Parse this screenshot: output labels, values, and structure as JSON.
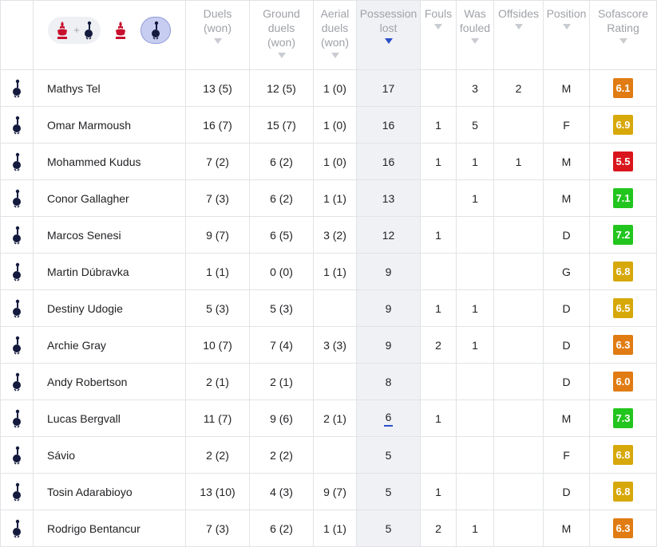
{
  "filters": {
    "combined_plus": "+",
    "icons": [
      "liverpool-crest",
      "tottenham-crest"
    ],
    "selected": "tottenham"
  },
  "columns": [
    {
      "key": "duels",
      "label": "Duels\n(won)"
    },
    {
      "key": "ground",
      "label": "Ground\nduels\n(won)"
    },
    {
      "key": "aerial",
      "label": "Aerial\nduels\n(won)"
    },
    {
      "key": "possession",
      "label": "Possession\nlost",
      "sorted": true
    },
    {
      "key": "fouls",
      "label": "Fouls"
    },
    {
      "key": "fouled",
      "label": "Was\nfouled"
    },
    {
      "key": "offsides",
      "label": "Offsides"
    },
    {
      "key": "position",
      "label": "Position"
    },
    {
      "key": "rating",
      "label": "Sofascore\nRating"
    }
  ],
  "colors": {
    "accent": "#2b50c8",
    "rating_orange": "#e07c13",
    "rating_yellow": "#d7a80a",
    "rating_red": "#d9161c",
    "rating_green": "#22c51e"
  },
  "players": [
    {
      "name": "Mathys Tel",
      "duels": "13 (5)",
      "ground": "12 (5)",
      "aerial": "1 (0)",
      "possession": "17",
      "fouls": "",
      "fouled": "3",
      "offsides": "2",
      "position": "M",
      "rating": "6.1",
      "rating_color": "#e07c13"
    },
    {
      "name": "Omar Marmoush",
      "duels": "16 (7)",
      "ground": "15 (7)",
      "aerial": "1 (0)",
      "possession": "16",
      "fouls": "1",
      "fouled": "5",
      "offsides": "",
      "position": "F",
      "rating": "6.9",
      "rating_color": "#d7a80a"
    },
    {
      "name": "Mohammed Kudus",
      "duels": "7 (2)",
      "ground": "6 (2)",
      "aerial": "1 (0)",
      "possession": "16",
      "fouls": "1",
      "fouled": "1",
      "offsides": "1",
      "position": "M",
      "rating": "5.5",
      "rating_color": "#d9161c"
    },
    {
      "name": "Conor Gallagher",
      "duels": "7 (3)",
      "ground": "6 (2)",
      "aerial": "1 (1)",
      "possession": "13",
      "fouls": "",
      "fouled": "1",
      "offsides": "",
      "position": "M",
      "rating": "7.1",
      "rating_color": "#22c51e"
    },
    {
      "name": "Marcos Senesi",
      "duels": "9 (7)",
      "ground": "6 (5)",
      "aerial": "3 (2)",
      "possession": "12",
      "fouls": "1",
      "fouled": "",
      "offsides": "",
      "position": "D",
      "rating": "7.2",
      "rating_color": "#22c51e"
    },
    {
      "name": "Martin Dúbravka",
      "duels": "1 (1)",
      "ground": "0 (0)",
      "aerial": "1 (1)",
      "possession": "9",
      "fouls": "",
      "fouled": "",
      "offsides": "",
      "position": "G",
      "rating": "6.8",
      "rating_color": "#d7a80a"
    },
    {
      "name": "Destiny Udogie",
      "duels": "5 (3)",
      "ground": "5 (3)",
      "aerial": "",
      "possession": "9",
      "fouls": "1",
      "fouled": "1",
      "offsides": "",
      "position": "D",
      "rating": "6.5",
      "rating_color": "#d7a80a"
    },
    {
      "name": "Archie Gray",
      "duels": "10 (7)",
      "ground": "7 (4)",
      "aerial": "3 (3)",
      "possession": "9",
      "fouls": "2",
      "fouled": "1",
      "offsides": "",
      "position": "D",
      "rating": "6.3",
      "rating_color": "#e07c13"
    },
    {
      "name": "Andy Robertson",
      "duels": "2 (1)",
      "ground": "2 (1)",
      "aerial": "",
      "possession": "8",
      "fouls": "",
      "fouled": "",
      "offsides": "",
      "position": "D",
      "rating": "6.0",
      "rating_color": "#e07c13"
    },
    {
      "name": "Lucas Bergvall",
      "duels": "11 (7)",
      "ground": "9 (6)",
      "aerial": "2 (1)",
      "possession": "6",
      "fouls": "1",
      "fouled": "",
      "offsides": "",
      "position": "M",
      "rating": "7.3",
      "rating_color": "#22c51e",
      "possession_underlined": true
    },
    {
      "name": "Sávio",
      "duels": "2 (2)",
      "ground": "2 (2)",
      "aerial": "",
      "possession": "5",
      "fouls": "",
      "fouled": "",
      "offsides": "",
      "position": "F",
      "rating": "6.8",
      "rating_color": "#d7a80a"
    },
    {
      "name": "Tosin Adarabioyo",
      "duels": "13 (10)",
      "ground": "4 (3)",
      "aerial": "9 (7)",
      "possession": "5",
      "fouls": "1",
      "fouled": "",
      "offsides": "",
      "position": "D",
      "rating": "6.8",
      "rating_color": "#d7a80a"
    },
    {
      "name": "Rodrigo Bentancur",
      "duels": "7 (3)",
      "ground": "6 (2)",
      "aerial": "1 (1)",
      "possession": "5",
      "fouls": "2",
      "fouled": "1",
      "offsides": "",
      "position": "M",
      "rating": "6.3",
      "rating_color": "#e07c13"
    }
  ]
}
